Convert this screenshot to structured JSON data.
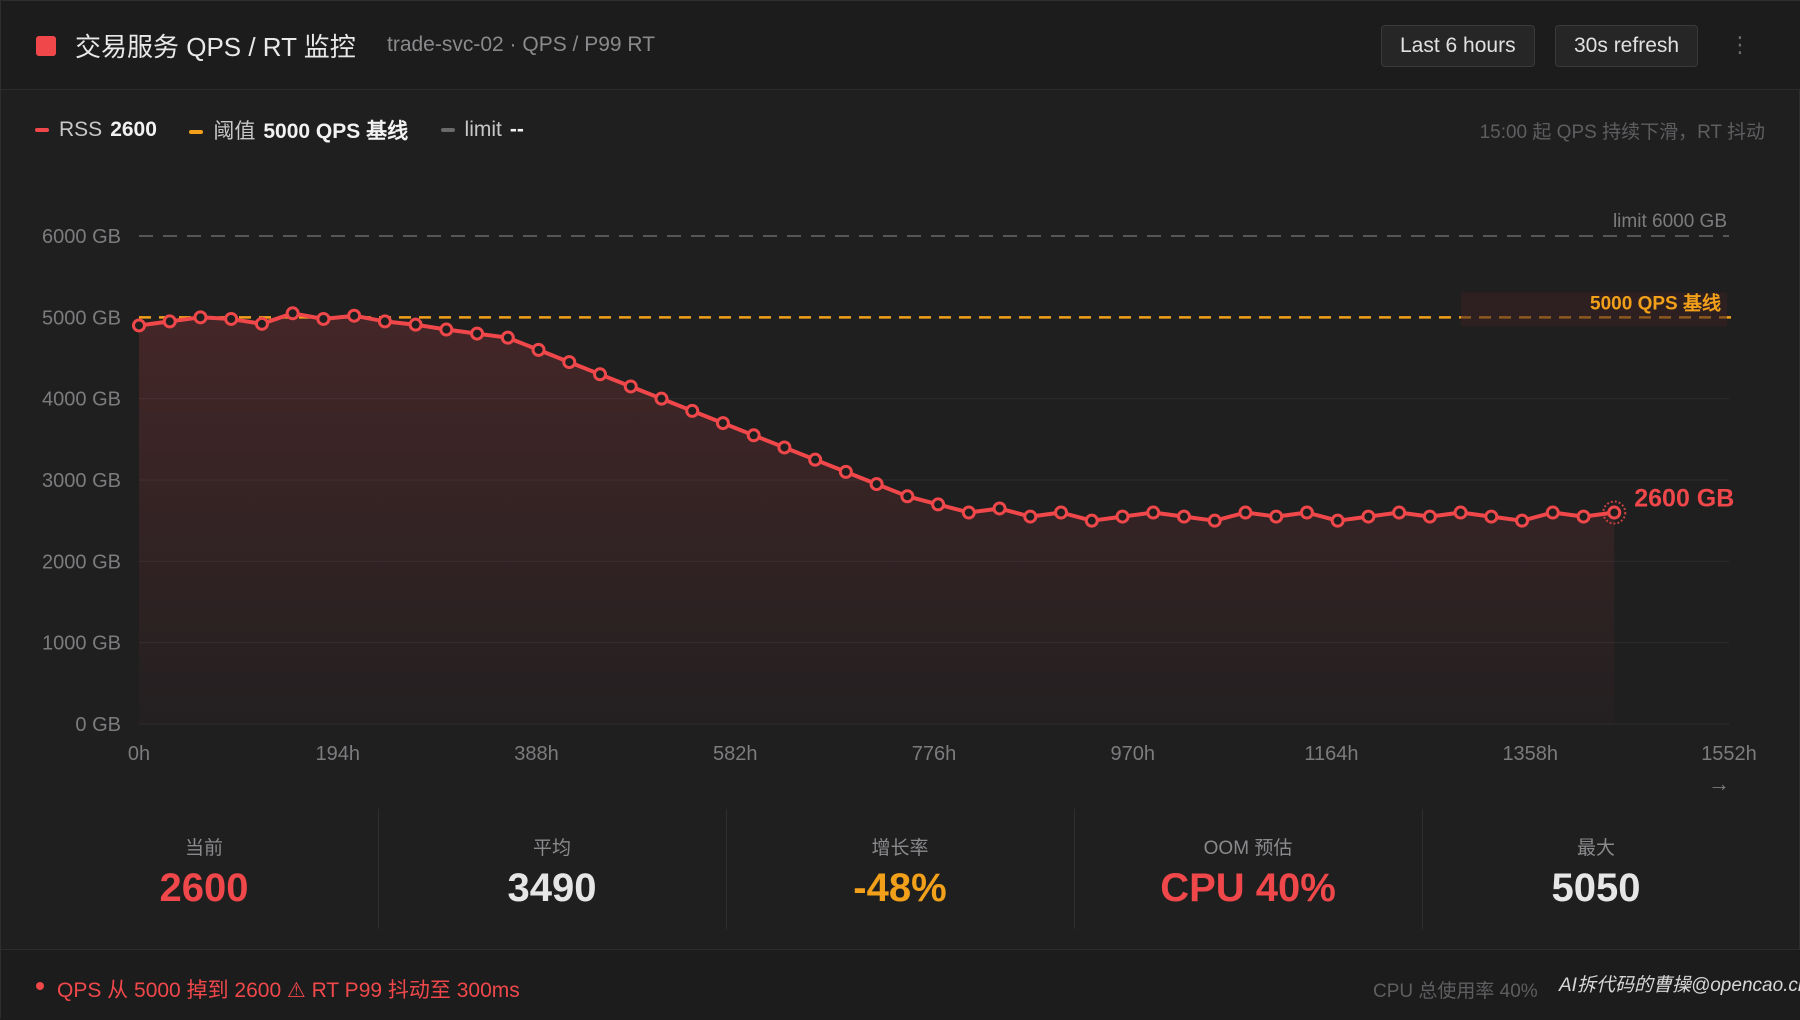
{
  "header": {
    "title": "交易服务 QPS / RT 监控",
    "subtitle": "trade-svc-02 · QPS / P99 RT",
    "time_range": "Last 6 hours",
    "refresh": "30s refresh",
    "status_color": "#f0484a"
  },
  "legend": [
    {
      "label": "RSS",
      "value": "2600",
      "color": "#f0484a"
    },
    {
      "label": "阈值",
      "value": "5000 QPS 基线",
      "color": "#f2a01a"
    },
    {
      "label": "limit",
      "value": "--",
      "color": "#6a6a6c"
    }
  ],
  "note": "15:00 起 QPS 持续下滑，RT 抖动",
  "chart_data": {
    "type": "line",
    "ylim": [
      0,
      6000
    ],
    "y_ticks": [
      "0 GB",
      "1000 GB",
      "2000 GB",
      "3000 GB",
      "4000 GB",
      "5000 GB",
      "6000 GB"
    ],
    "xlim": [
      0,
      1552
    ],
    "x_ticks": [
      "0h",
      "194h",
      "388h",
      "582h",
      "776h",
      "970h",
      "1164h",
      "1358h",
      "1552h"
    ],
    "x_arrow": "→",
    "limit_value": 6000,
    "limit_label": "limit 6000 GB",
    "baseline_value": 5000,
    "baseline_label": "5000 QPS 基线",
    "end_label": "2600 GB",
    "series": [
      {
        "name": "RSS",
        "color": "#f0484a",
        "x": [
          0,
          30,
          60,
          90,
          120,
          150,
          180,
          210,
          240,
          270,
          300,
          330,
          360,
          390,
          420,
          450,
          480,
          510,
          540,
          570,
          600,
          630,
          660,
          690,
          720,
          750,
          780,
          810,
          840,
          870,
          900,
          930,
          960,
          990,
          1020,
          1050,
          1080,
          1110,
          1140,
          1170,
          1200,
          1230,
          1260,
          1290,
          1320,
          1350,
          1380,
          1410,
          1440
        ],
        "values": [
          4900,
          4950,
          5000,
          4980,
          4920,
          5050,
          4980,
          5020,
          4950,
          4910,
          4850,
          4800,
          4750,
          4600,
          4450,
          4300,
          4150,
          4000,
          3850,
          3700,
          3550,
          3400,
          3250,
          3100,
          2950,
          2800,
          2700,
          2600,
          2650,
          2550,
          2600,
          2500,
          2550,
          2600,
          2550,
          2500,
          2600,
          2550,
          2600,
          2500,
          2550,
          2600,
          2550,
          2600,
          2550,
          2500,
          2600,
          2550,
          2600
        ]
      }
    ]
  },
  "stats": [
    {
      "label": "当前",
      "value": "2600",
      "color": "#f0484a"
    },
    {
      "label": "平均",
      "value": "3490",
      "color": "#e6e6e6"
    },
    {
      "label": "增长率",
      "value": "-48%",
      "color": "#f2a01a"
    },
    {
      "label": "OOM 预估",
      "value": "CPU 40%",
      "color": "#f0484a"
    },
    {
      "label": "最大",
      "value": "5050",
      "color": "#e6e6e6"
    }
  ],
  "footer": {
    "alert": "QPS 从 5000 掉到 2600 ⚠ RT P99 抖动至 300ms",
    "cpu": "CPU 总使用率 40%",
    "watermark": "AI拆代码的曹操@opencao.cn"
  }
}
